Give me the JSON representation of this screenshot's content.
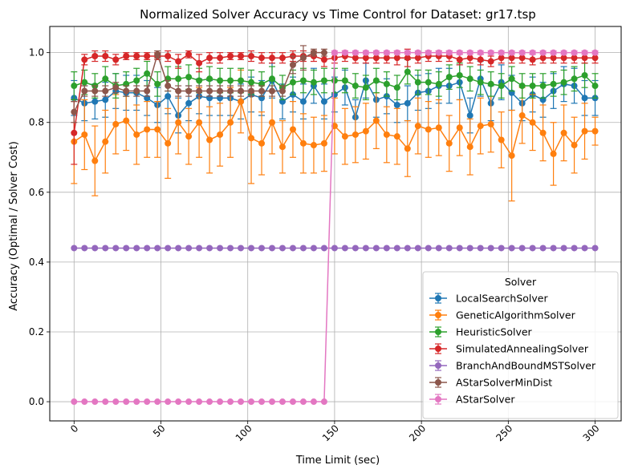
{
  "chart_data": {
    "type": "line",
    "title": "Normalized Solver Accuracy vs Time Control for Dataset: gr17.tsp",
    "xlabel": "Time Limit (sec)",
    "ylabel": "Accuracy (Optimal / Solver Cost)",
    "xlim": [
      -14,
      315
    ],
    "ylim": [
      -0.055,
      1.075
    ],
    "xticks": [
      0,
      50,
      100,
      150,
      200,
      250,
      300
    ],
    "xtick_labels": [
      "0",
      "50",
      "100",
      "150",
      "200",
      "250",
      "300"
    ],
    "yticks": [
      0.0,
      0.2,
      0.4,
      0.6,
      0.8,
      1.0
    ],
    "ytick_labels": [
      "0.0",
      "0.2",
      "0.4",
      "0.6",
      "0.8",
      "1.0"
    ],
    "grid": true,
    "legend": {
      "title": "Solver",
      "placement": "lower-right"
    },
    "x": [
      0,
      6,
      12,
      18,
      24,
      30,
      36,
      42,
      48,
      54,
      60,
      66,
      72,
      78,
      84,
      90,
      96,
      102,
      108,
      114,
      120,
      126,
      132,
      138,
      144,
      150,
      156,
      162,
      168,
      174,
      180,
      186,
      192,
      198,
      204,
      210,
      216,
      222,
      228,
      234,
      240,
      246,
      252,
      258,
      264,
      270,
      276,
      282,
      288,
      294,
      300
    ],
    "series": [
      {
        "name": "LocalSearchSolver",
        "color": "#1f77b4",
        "values": [
          0.87,
          0.855,
          0.86,
          0.865,
          0.89,
          0.885,
          0.885,
          0.87,
          0.85,
          0.875,
          0.82,
          0.855,
          0.875,
          0.87,
          0.87,
          0.87,
          0.86,
          0.88,
          0.87,
          0.92,
          0.86,
          0.88,
          0.86,
          0.905,
          0.86,
          0.88,
          0.9,
          0.815,
          0.92,
          0.865,
          0.875,
          0.85,
          0.855,
          0.885,
          0.89,
          0.905,
          0.905,
          0.915,
          0.82,
          0.925,
          0.855,
          0.915,
          0.885,
          0.855,
          0.88,
          0.865,
          0.89,
          0.91,
          0.905,
          0.87,
          0.87
        ],
        "errors": [
          0.05,
          0.05,
          0.05,
          0.05,
          0.05,
          0.05,
          0.05,
          0.05,
          0.05,
          0.05,
          0.05,
          0.05,
          0.05,
          0.05,
          0.05,
          0.05,
          0.05,
          0.05,
          0.05,
          0.05,
          0.05,
          0.05,
          0.05,
          0.05,
          0.05,
          0.05,
          0.05,
          0.05,
          0.05,
          0.05,
          0.05,
          0.05,
          0.05,
          0.05,
          0.05,
          0.05,
          0.05,
          0.05,
          0.05,
          0.05,
          0.05,
          0.05,
          0.05,
          0.05,
          0.05,
          0.05,
          0.05,
          0.05,
          0.05,
          0.05,
          0.05
        ]
      },
      {
        "name": "GeneticAlgorithmSolver",
        "color": "#ff7f0e",
        "values": [
          0.745,
          0.765,
          0.69,
          0.745,
          0.795,
          0.805,
          0.765,
          0.78,
          0.78,
          0.74,
          0.8,
          0.76,
          0.8,
          0.75,
          0.765,
          0.8,
          0.86,
          0.755,
          0.74,
          0.8,
          0.73,
          0.78,
          0.74,
          0.735,
          0.74,
          0.79,
          0.76,
          0.765,
          0.775,
          0.805,
          0.765,
          0.76,
          0.725,
          0.79,
          0.78,
          0.785,
          0.74,
          0.785,
          0.73,
          0.79,
          0.795,
          0.75,
          0.705,
          0.82,
          0.8,
          0.77,
          0.71,
          0.77,
          0.735,
          0.775,
          0.775
        ],
        "errors": [
          0.12,
          0.1,
          0.1,
          0.09,
          0.085,
          0.085,
          0.085,
          0.08,
          0.08,
          0.1,
          0.09,
          0.08,
          0.1,
          0.095,
          0.09,
          0.1,
          0.09,
          0.13,
          0.09,
          0.09,
          0.075,
          0.08,
          0.085,
          0.08,
          0.08,
          0.08,
          0.08,
          0.08,
          0.08,
          0.08,
          0.08,
          0.08,
          0.08,
          0.08,
          0.08,
          0.08,
          0.08,
          0.08,
          0.08,
          0.08,
          0.08,
          0.08,
          0.13,
          0.08,
          0.08,
          0.08,
          0.09,
          0.08,
          0.08,
          0.08,
          0.04
        ]
      },
      {
        "name": "HeuristicSolver",
        "color": "#2ca02c",
        "values": [
          0.905,
          0.915,
          0.905,
          0.925,
          0.905,
          0.91,
          0.92,
          0.94,
          0.91,
          0.925,
          0.925,
          0.93,
          0.92,
          0.925,
          0.92,
          0.92,
          0.92,
          0.915,
          0.91,
          0.925,
          0.9,
          0.915,
          0.92,
          0.915,
          0.92,
          0.92,
          0.92,
          0.905,
          0.9,
          0.92,
          0.91,
          0.9,
          0.945,
          0.915,
          0.915,
          0.91,
          0.93,
          0.935,
          0.925,
          0.915,
          0.91,
          0.905,
          0.925,
          0.905,
          0.905,
          0.905,
          0.91,
          0.915,
          0.925,
          0.935,
          0.905
        ],
        "errors": [
          0.04,
          0.035,
          0.035,
          0.035,
          0.035,
          0.035,
          0.035,
          0.035,
          0.035,
          0.035,
          0.035,
          0.035,
          0.035,
          0.035,
          0.035,
          0.035,
          0.035,
          0.035,
          0.035,
          0.035,
          0.035,
          0.035,
          0.035,
          0.035,
          0.035,
          0.035,
          0.035,
          0.035,
          0.035,
          0.035,
          0.035,
          0.035,
          0.035,
          0.035,
          0.035,
          0.035,
          0.035,
          0.035,
          0.035,
          0.035,
          0.035,
          0.035,
          0.035,
          0.035,
          0.035,
          0.035,
          0.035,
          0.035,
          0.035,
          0.035,
          0.035
        ]
      },
      {
        "name": "SimulatedAnnealingSolver",
        "color": "#d62728",
        "values": [
          0.77,
          0.98,
          0.99,
          0.99,
          0.98,
          0.99,
          0.99,
          0.99,
          0.99,
          0.99,
          0.975,
          0.995,
          0.97,
          0.985,
          0.985,
          0.99,
          0.99,
          0.99,
          0.985,
          0.985,
          0.985,
          0.99,
          0.99,
          0.99,
          0.98,
          0.985,
          0.99,
          0.985,
          0.985,
          0.985,
          0.985,
          0.985,
          0.985,
          0.985,
          0.99,
          0.99,
          0.99,
          0.98,
          0.985,
          0.98,
          0.975,
          0.985,
          0.985,
          0.985,
          0.98,
          0.985,
          0.985,
          0.985,
          0.985,
          0.985,
          0.985
        ],
        "errors": [
          0.09,
          0.015,
          0.015,
          0.015,
          0.015,
          0.01,
          0.01,
          0.01,
          0.01,
          0.015,
          0.02,
          0.01,
          0.025,
          0.015,
          0.015,
          0.01,
          0.01,
          0.015,
          0.015,
          0.015,
          0.015,
          0.015,
          0.015,
          0.015,
          0.02,
          0.015,
          0.015,
          0.015,
          0.015,
          0.015,
          0.015,
          0.02,
          0.025,
          0.015,
          0.015,
          0.015,
          0.015,
          0.015,
          0.015,
          0.015,
          0.015,
          0.015,
          0.015,
          0.015,
          0.015,
          0.015,
          0.015,
          0.015,
          0.015,
          0.015,
          0.015
        ]
      },
      {
        "name": "BranchAndBoundMSTSolver",
        "color": "#9467bd",
        "values": [
          0.44,
          0.44,
          0.44,
          0.44,
          0.44,
          0.44,
          0.44,
          0.44,
          0.44,
          0.44,
          0.44,
          0.44,
          0.44,
          0.44,
          0.44,
          0.44,
          0.44,
          0.44,
          0.44,
          0.44,
          0.44,
          0.44,
          0.44,
          0.44,
          0.44,
          0.44,
          0.44,
          0.44,
          0.44,
          0.44,
          0.44,
          0.44,
          0.44,
          0.44,
          0.44,
          0.44,
          0.44,
          0.44,
          0.44,
          0.44,
          0.44,
          0.44,
          0.44,
          0.44,
          0.44,
          0.44,
          0.44,
          0.44,
          0.44,
          0.44,
          0.44
        ],
        "errors": [
          0,
          0,
          0,
          0,
          0,
          0,
          0,
          0,
          0,
          0,
          0,
          0,
          0,
          0,
          0,
          0,
          0,
          0,
          0,
          0,
          0,
          0,
          0,
          0,
          0,
          0,
          0,
          0,
          0,
          0,
          0,
          0,
          0,
          0,
          0,
          0,
          0,
          0,
          0,
          0,
          0,
          0,
          0,
          0,
          0,
          0,
          0,
          0,
          0,
          0,
          0
        ]
      },
      {
        "name": "AStarSolverMinDist",
        "color": "#8c564b",
        "x": [
          0,
          6,
          12,
          18,
          24,
          30,
          36,
          42,
          48,
          54,
          60,
          66,
          72,
          78,
          84,
          90,
          96,
          102,
          108,
          114,
          120,
          126,
          132,
          138,
          144
        ],
        "values": [
          0.83,
          0.89,
          0.89,
          0.89,
          0.9,
          0.89,
          0.89,
          0.89,
          0.995,
          0.905,
          0.89,
          0.89,
          0.89,
          0.89,
          0.89,
          0.89,
          0.89,
          0.89,
          0.89,
          0.89,
          0.89,
          0.965,
          0.985,
          1.0,
          1.0
        ],
        "errors": [
          0.03,
          0.015,
          0.015,
          0.015,
          0.015,
          0.015,
          0.015,
          0.015,
          0.01,
          0.015,
          0.015,
          0.015,
          0.015,
          0.015,
          0.015,
          0.015,
          0.015,
          0.015,
          0.015,
          0.015,
          0.015,
          0.025,
          0.035,
          0.01,
          0.01
        ]
      },
      {
        "name": "AStarSolver",
        "color": "#e377c2",
        "values": [
          0.0,
          0.0,
          0.0,
          0.0,
          0.0,
          0.0,
          0.0,
          0.0,
          0.0,
          0.0,
          0.0,
          0.0,
          0.0,
          0.0,
          0.0,
          0.0,
          0.0,
          0.0,
          0.0,
          0.0,
          0.0,
          0.0,
          0.0,
          0.0,
          0.0,
          1.0,
          1.0,
          1.0,
          1.0,
          1.0,
          1.0,
          1.0,
          1.0,
          1.0,
          1.0,
          1.0,
          1.0,
          1.0,
          1.0,
          1.0,
          1.0,
          1.0,
          1.0,
          1.0,
          1.0,
          1.0,
          1.0,
          1.0,
          1.0,
          1.0,
          1.0
        ],
        "errors": [
          0,
          0,
          0,
          0,
          0,
          0,
          0,
          0,
          0,
          0,
          0,
          0,
          0,
          0,
          0,
          0,
          0,
          0,
          0,
          0,
          0,
          0,
          0,
          0,
          0,
          0.005,
          0.005,
          0.005,
          0.005,
          0.005,
          0.005,
          0.005,
          0.005,
          0.005,
          0.005,
          0.005,
          0.005,
          0.005,
          0.005,
          0.005,
          0.005,
          0.005,
          0.005,
          0.005,
          0.005,
          0.005,
          0.005,
          0.005,
          0.005,
          0.005,
          0.005
        ]
      }
    ]
  }
}
